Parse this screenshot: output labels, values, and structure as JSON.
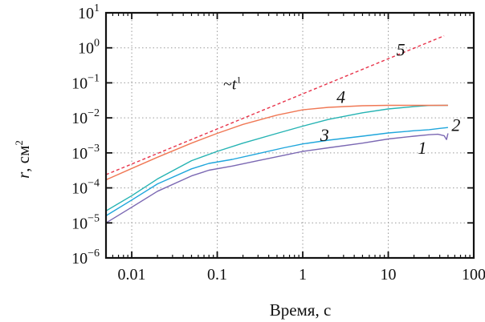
{
  "chart_data": {
    "type": "line",
    "xscale": "log",
    "yscale": "log",
    "xlim": [
      0.005,
      100
    ],
    "ylim": [
      1e-06,
      10
    ],
    "grid": true,
    "xlabel": "Время, с",
    "ylabel_prefix": "r",
    "ylabel_unit": ", см",
    "ylabel_sup": "2",
    "x_ticks": [
      {
        "value": 0.01,
        "label": "0.01"
      },
      {
        "value": 0.1,
        "label": "0.1"
      },
      {
        "value": 1,
        "label": "1"
      },
      {
        "value": 10,
        "label": "10"
      },
      {
        "value": 100,
        "label": "100"
      }
    ],
    "y_ticks": [
      {
        "value": 10,
        "base": "10",
        "exp": "1"
      },
      {
        "value": 1,
        "base": "10",
        "exp": "0"
      },
      {
        "value": 0.1,
        "base": "10",
        "exp": "−1"
      },
      {
        "value": 0.01,
        "base": "10",
        "exp": "−2"
      },
      {
        "value": 0.001,
        "base": "10",
        "exp": "−3"
      },
      {
        "value": 0.0001,
        "base": "10",
        "exp": "−4"
      },
      {
        "value": 1e-05,
        "base": "10",
        "exp": "−5"
      },
      {
        "value": 1e-06,
        "base": "10",
        "exp": "−6"
      }
    ],
    "series": [
      {
        "label": "1",
        "color": "#7b68b3",
        "dash": false,
        "points": [
          [
            0.005,
            1e-05
          ],
          [
            0.01,
            2.8e-05
          ],
          [
            0.02,
            8e-05
          ],
          [
            0.05,
            0.00022
          ],
          [
            0.08,
            0.00032
          ],
          [
            0.15,
            0.00042
          ],
          [
            0.3,
            0.0006
          ],
          [
            0.6,
            0.00085
          ],
          [
            1,
            0.0011
          ],
          [
            2,
            0.0014
          ],
          [
            5,
            0.0019
          ],
          [
            10,
            0.0025
          ],
          [
            20,
            0.003
          ],
          [
            30,
            0.0033
          ],
          [
            38,
            0.0034
          ],
          [
            45,
            0.0031
          ],
          [
            48,
            0.0024
          ],
          [
            50,
            0.0036
          ]
        ],
        "label_at": [
          25,
          0.00095
        ]
      },
      {
        "label": "2",
        "color": "#1fa6dc",
        "dash": false,
        "points": [
          [
            0.005,
            1.6e-05
          ],
          [
            0.01,
            4.5e-05
          ],
          [
            0.02,
            0.00013
          ],
          [
            0.05,
            0.00035
          ],
          [
            0.08,
            0.0005
          ],
          [
            0.15,
            0.00065
          ],
          [
            0.3,
            0.00095
          ],
          [
            0.6,
            0.0014
          ],
          [
            1,
            0.0018
          ],
          [
            2,
            0.0023
          ],
          [
            5,
            0.003
          ],
          [
            10,
            0.0037
          ],
          [
            20,
            0.0043
          ],
          [
            30,
            0.0046
          ],
          [
            40,
            0.005
          ],
          [
            50,
            0.0053
          ]
        ],
        "label_at": [
          62,
          0.0042
        ]
      },
      {
        "label": "3",
        "color": "#25b3b3",
        "dash": false,
        "points": [
          [
            0.005,
            2.2e-05
          ],
          [
            0.01,
            6e-05
          ],
          [
            0.02,
            0.00018
          ],
          [
            0.05,
            0.0006
          ],
          [
            0.1,
            0.0011
          ],
          [
            0.2,
            0.0019
          ],
          [
            0.5,
            0.0036
          ],
          [
            1,
            0.0058
          ],
          [
            2,
            0.009
          ],
          [
            5,
            0.014
          ],
          [
            10,
            0.018
          ],
          [
            20,
            0.021
          ],
          [
            30,
            0.0225
          ],
          [
            50,
            0.0228
          ]
        ],
        "label_at": [
          1.8,
          0.0022
        ]
      },
      {
        "label": "4",
        "color": "#f07855",
        "dash": false,
        "points": [
          [
            0.005,
            0.00017
          ],
          [
            0.01,
            0.00036
          ],
          [
            0.02,
            0.00075
          ],
          [
            0.05,
            0.0019
          ],
          [
            0.1,
            0.0036
          ],
          [
            0.2,
            0.0065
          ],
          [
            0.5,
            0.012
          ],
          [
            1,
            0.017
          ],
          [
            2,
            0.02
          ],
          [
            5,
            0.0222
          ],
          [
            10,
            0.0228
          ],
          [
            20,
            0.0228
          ],
          [
            50,
            0.0228
          ]
        ],
        "label_at": [
          2.8,
          0.027
        ]
      },
      {
        "label": "5",
        "color": "#e8334a",
        "dash": true,
        "points": [
          [
            0.005,
            0.00024
          ],
          [
            45,
            2.2
          ]
        ],
        "label_at": [
          14,
          0.6
        ]
      }
    ],
    "annotation": {
      "text_prefix": "~",
      "text_var": "t",
      "text_sup": "1",
      "at": [
        0.15,
        0.065
      ]
    }
  }
}
